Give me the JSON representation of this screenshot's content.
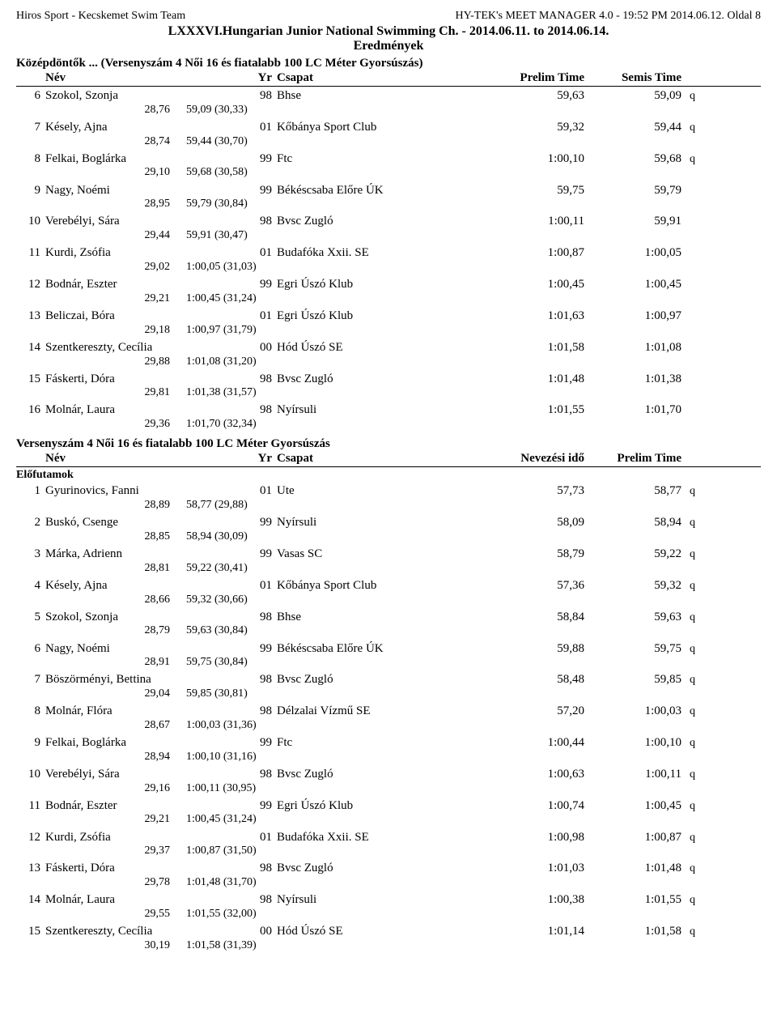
{
  "header": {
    "left": "Hiros Sport - Kecskemet Swim Team",
    "right": "HY-TEK's MEET MANAGER 4.0 - 19:52 PM  2014.06.12.   Oldal 8",
    "title1": "LXXXVI.Hungarian Junior National Swimming Ch. - 2014.06.11. to 2014.06.14.",
    "title2": "Eredmények"
  },
  "event1": {
    "section": "Középdöntők ... (Versenyszám 4  Női 16 és fiatalabb 100 LC Méter Gyorsúszás)",
    "cols": {
      "name": "Név",
      "yr": "Yr",
      "team": "Csapat",
      "t1": "Prelim Time",
      "t2": "Semis Time"
    },
    "rows": [
      {
        "rank": "6",
        "name": "Szokol, Szonja",
        "yr": "98",
        "team": "Bhse",
        "t1": "59,63",
        "t2": "59,09",
        "q": "q",
        "s1": "28,76",
        "s2": "59,09 (30,33)"
      },
      {
        "rank": "7",
        "name": "Késely, Ajna",
        "yr": "01",
        "team": "Kőbánya Sport Club",
        "t1": "59,32",
        "t2": "59,44",
        "q": "q",
        "s1": "28,74",
        "s2": "59,44 (30,70)"
      },
      {
        "rank": "8",
        "name": "Felkai, Boglárka",
        "yr": "99",
        "team": "Ftc",
        "t1": "1:00,10",
        "t2": "59,68",
        "q": "q",
        "s1": "29,10",
        "s2": "59,68 (30,58)"
      },
      {
        "rank": "9",
        "name": "Nagy, Noémi",
        "yr": "99",
        "team": "Békéscsaba Előre ÚK",
        "t1": "59,75",
        "t2": "59,79",
        "q": "",
        "s1": "28,95",
        "s2": "59,79 (30,84)"
      },
      {
        "rank": "10",
        "name": "Verebélyi, Sára",
        "yr": "98",
        "team": "Bvsc Zugló",
        "t1": "1:00,11",
        "t2": "59,91",
        "q": "",
        "s1": "29,44",
        "s2": "59,91 (30,47)"
      },
      {
        "rank": "11",
        "name": "Kurdi, Zsófia",
        "yr": "01",
        "team": "Budafóka Xxii. SE",
        "t1": "1:00,87",
        "t2": "1:00,05",
        "q": "",
        "s1": "29,02",
        "s2": "1:00,05 (31,03)"
      },
      {
        "rank": "12",
        "name": "Bodnár, Eszter",
        "yr": "99",
        "team": "Egri Úszó Klub",
        "t1": "1:00,45",
        "t2": "1:00,45",
        "q": "",
        "s1": "29,21",
        "s2": "1:00,45 (31,24)"
      },
      {
        "rank": "13",
        "name": "Beliczai, Bóra",
        "yr": "01",
        "team": "Egri Úszó Klub",
        "t1": "1:01,63",
        "t2": "1:00,97",
        "q": "",
        "s1": "29,18",
        "s2": "1:00,97 (31,79)"
      },
      {
        "rank": "14",
        "name": "Szentkereszty, Cecília",
        "yr": "00",
        "team": "Hód Úszó SE",
        "t1": "1:01,58",
        "t2": "1:01,08",
        "q": "",
        "s1": "29,88",
        "s2": "1:01,08 (31,20)"
      },
      {
        "rank": "15",
        "name": "Fáskerti, Dóra",
        "yr": "98",
        "team": "Bvsc Zugló",
        "t1": "1:01,48",
        "t2": "1:01,38",
        "q": "",
        "s1": "29,81",
        "s2": "1:01,38 (31,57)"
      },
      {
        "rank": "16",
        "name": "Molnár, Laura",
        "yr": "98",
        "team": "Nyírsuli",
        "t1": "1:01,55",
        "t2": "1:01,70",
        "q": "",
        "s1": "29,36",
        "s2": "1:01,70 (32,34)"
      }
    ]
  },
  "event2": {
    "section": "Versenyszám 4  Női 16 és fiatalabb 100 LC Méter Gyorsúszás",
    "cols": {
      "name": "Név",
      "yr": "Yr",
      "team": "Csapat",
      "t1": "Nevezési idő",
      "t2": "Prelim Time"
    },
    "prelim_label": "Előfutamok",
    "rows": [
      {
        "rank": "1",
        "name": "Gyurinovics, Fanni",
        "yr": "01",
        "team": "Ute",
        "t1": "57,73",
        "t2": "58,77",
        "q": "q",
        "s1": "28,89",
        "s2": "58,77 (29,88)"
      },
      {
        "rank": "2",
        "name": "Buskó, Csenge",
        "yr": "99",
        "team": "Nyírsuli",
        "t1": "58,09",
        "t2": "58,94",
        "q": "q",
        "s1": "28,85",
        "s2": "58,94 (30,09)"
      },
      {
        "rank": "3",
        "name": "Márka, Adrienn",
        "yr": "99",
        "team": "Vasas SC",
        "t1": "58,79",
        "t2": "59,22",
        "q": "q",
        "s1": "28,81",
        "s2": "59,22 (30,41)"
      },
      {
        "rank": "4",
        "name": "Késely, Ajna",
        "yr": "01",
        "team": "Kőbánya Sport Club",
        "t1": "57,36",
        "t2": "59,32",
        "q": "q",
        "s1": "28,66",
        "s2": "59,32 (30,66)"
      },
      {
        "rank": "5",
        "name": "Szokol, Szonja",
        "yr": "98",
        "team": "Bhse",
        "t1": "58,84",
        "t2": "59,63",
        "q": "q",
        "s1": "28,79",
        "s2": "59,63 (30,84)"
      },
      {
        "rank": "6",
        "name": "Nagy, Noémi",
        "yr": "99",
        "team": "Békéscsaba Előre ÚK",
        "t1": "59,88",
        "t2": "59,75",
        "q": "q",
        "s1": "28,91",
        "s2": "59,75 (30,84)"
      },
      {
        "rank": "7",
        "name": "Böszörményi, Bettina",
        "yr": "98",
        "team": "Bvsc Zugló",
        "t1": "58,48",
        "t2": "59,85",
        "q": "q",
        "s1": "29,04",
        "s2": "59,85 (30,81)"
      },
      {
        "rank": "8",
        "name": "Molnár, Flóra",
        "yr": "98",
        "team": "Délzalai Vízmű SE",
        "t1": "57,20",
        "t2": "1:00,03",
        "q": "q",
        "s1": "28,67",
        "s2": "1:00,03 (31,36)"
      },
      {
        "rank": "9",
        "name": "Felkai, Boglárka",
        "yr": "99",
        "team": "Ftc",
        "t1": "1:00,44",
        "t2": "1:00,10",
        "q": "q",
        "s1": "28,94",
        "s2": "1:00,10 (31,16)"
      },
      {
        "rank": "10",
        "name": "Verebélyi, Sára",
        "yr": "98",
        "team": "Bvsc Zugló",
        "t1": "1:00,63",
        "t2": "1:00,11",
        "q": "q",
        "s1": "29,16",
        "s2": "1:00,11 (30,95)"
      },
      {
        "rank": "11",
        "name": "Bodnár, Eszter",
        "yr": "99",
        "team": "Egri Úszó Klub",
        "t1": "1:00,74",
        "t2": "1:00,45",
        "q": "q",
        "s1": "29,21",
        "s2": "1:00,45 (31,24)"
      },
      {
        "rank": "12",
        "name": "Kurdi, Zsófia",
        "yr": "01",
        "team": "Budafóka Xxii. SE",
        "t1": "1:00,98",
        "t2": "1:00,87",
        "q": "q",
        "s1": "29,37",
        "s2": "1:00,87 (31,50)"
      },
      {
        "rank": "13",
        "name": "Fáskerti, Dóra",
        "yr": "98",
        "team": "Bvsc Zugló",
        "t1": "1:01,03",
        "t2": "1:01,48",
        "q": "q",
        "s1": "29,78",
        "s2": "1:01,48 (31,70)"
      },
      {
        "rank": "14",
        "name": "Molnár, Laura",
        "yr": "98",
        "team": "Nyírsuli",
        "t1": "1:00,38",
        "t2": "1:01,55",
        "q": "q",
        "s1": "29,55",
        "s2": "1:01,55 (32,00)"
      },
      {
        "rank": "15",
        "name": "Szentkereszty, Cecília",
        "yr": "00",
        "team": "Hód Úszó SE",
        "t1": "1:01,14",
        "t2": "1:01,58",
        "q": "q",
        "s1": "30,19",
        "s2": "1:01,58 (31,39)"
      }
    ]
  }
}
